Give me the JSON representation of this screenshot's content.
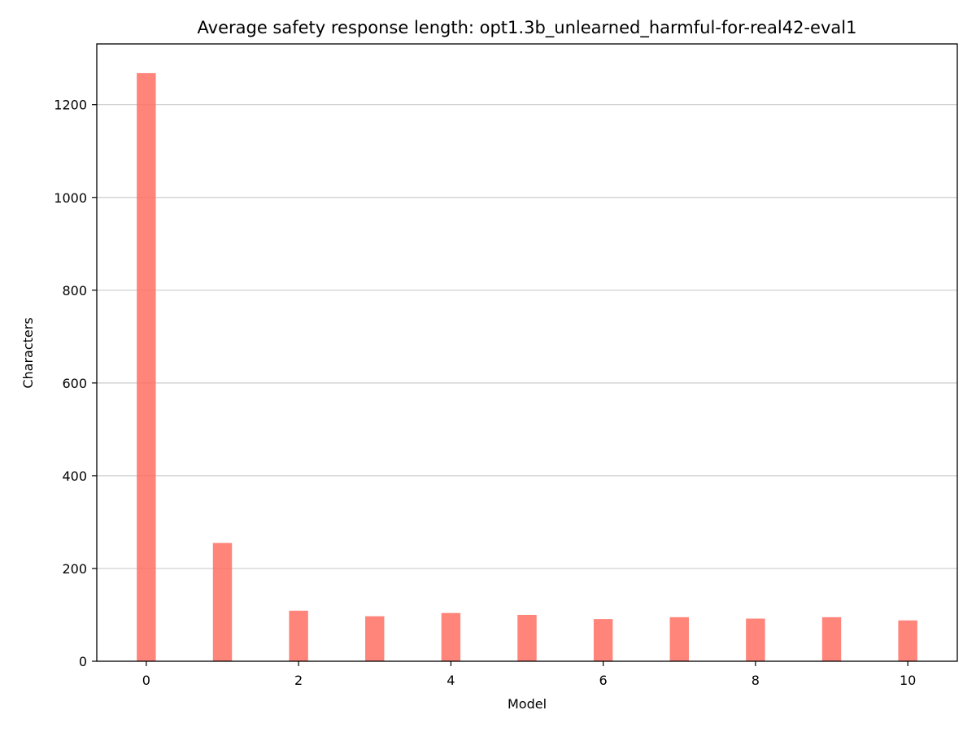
{
  "chart_data": {
    "type": "bar",
    "title": "Average safety response length: opt1.3b_unlearned_harmful-for-real42-eval1",
    "xlabel": "Model",
    "ylabel": "Characters",
    "x": [
      0,
      1,
      2,
      3,
      4,
      5,
      6,
      7,
      8,
      9,
      10
    ],
    "values": [
      1268,
      255,
      109,
      97,
      104,
      100,
      91,
      95,
      92,
      95,
      88
    ],
    "xlim": [
      -0.65,
      10.65
    ],
    "ylim": [
      0,
      1331
    ],
    "xticks": [
      0,
      2,
      4,
      6,
      8,
      10
    ],
    "yticks": [
      0,
      200,
      400,
      600,
      800,
      1000,
      1200
    ],
    "bar_width": 0.25,
    "grid": "y",
    "bar_color": "#ff6f61",
    "bar_opacity": 0.85,
    "grid_color": "#cccccc"
  }
}
